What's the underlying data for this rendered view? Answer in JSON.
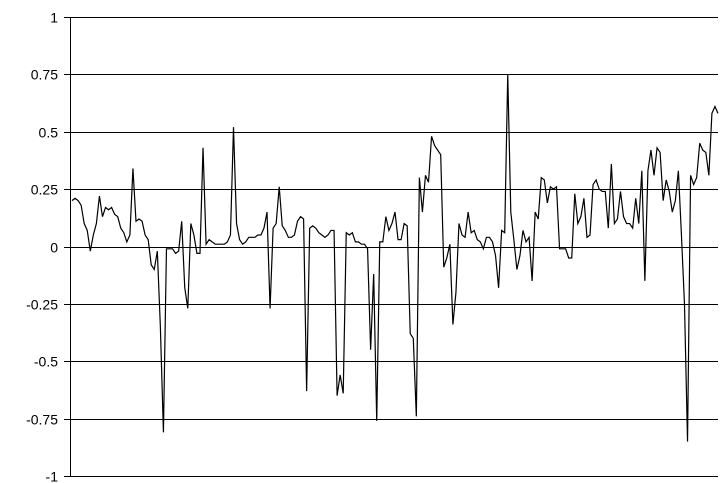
{
  "chart_data": {
    "type": "line",
    "title": "",
    "xlabel": "",
    "ylabel": "",
    "ylim": [
      -1,
      1
    ],
    "yticks": [
      1,
      0.75,
      0.5,
      0.25,
      0,
      -0.25,
      -0.5,
      -0.75,
      -1
    ],
    "ytick_labels": [
      "1",
      "0.75",
      "0.5",
      "0.25",
      "0",
      "-0.25",
      "-0.5",
      "-0.75",
      "-1"
    ],
    "grid": "horizontal",
    "legend": "none",
    "line_color": "#000000",
    "grid_color": "#000000",
    "series": [
      {
        "values": [
          0.2,
          0.21,
          0.2,
          0.18,
          0.1,
          0.07,
          -0.02,
          0.05,
          0.1,
          0.22,
          0.13,
          0.17,
          0.16,
          0.17,
          0.14,
          0.13,
          0.08,
          0.06,
          0.02,
          0.05,
          0.34,
          0.11,
          0.12,
          0.11,
          0.05,
          0.03,
          -0.08,
          -0.1,
          -0.02,
          -0.35,
          -0.81,
          -0.01,
          -0.01,
          -0.01,
          -0.03,
          -0.02,
          0.11,
          -0.18,
          -0.27,
          0.1,
          0.05,
          -0.03,
          -0.03,
          0.43,
          0.01,
          0.03,
          0.02,
          0.01,
          0.01,
          0.01,
          0.01,
          0.02,
          0.05,
          0.52,
          0.1,
          0.03,
          0.01,
          0.02,
          0.04,
          0.04,
          0.04,
          0.05,
          0.05,
          0.08,
          0.15,
          -0.27,
          0.08,
          0.1,
          0.26,
          0.09,
          0.07,
          0.04,
          0.04,
          0.05,
          0.11,
          0.13,
          0.12,
          -0.63,
          0.08,
          0.09,
          0.08,
          0.06,
          0.05,
          0.04,
          0.05,
          0.07,
          0.07,
          -0.65,
          -0.56,
          -0.64,
          0.06,
          0.05,
          0.06,
          0.02,
          0.02,
          0.01,
          0.01,
          -0.01,
          -0.45,
          -0.12,
          -0.76,
          0.02,
          0.02,
          0.13,
          0.07,
          0.1,
          0.15,
          0.03,
          0.03,
          0.1,
          0.09,
          -0.38,
          -0.4,
          -0.74,
          0.3,
          0.15,
          0.31,
          0.28,
          0.48,
          0.44,
          0.42,
          0.4,
          -0.09,
          -0.05,
          0.01,
          -0.34,
          -0.2,
          0.1,
          0.05,
          0.04,
          0.15,
          0.06,
          0.07,
          0.03,
          0.02,
          -0.01,
          0.04,
          0.04,
          0.02,
          -0.04,
          -0.18,
          0.07,
          0.06,
          0.75,
          0.15,
          0.03,
          -0.1,
          -0.04,
          0.07,
          0.02,
          0.04,
          -0.15,
          0.15,
          0.12,
          0.3,
          0.29,
          0.19,
          0.26,
          0.25,
          0.26,
          -0.01,
          -0.01,
          -0.01,
          -0.05,
          -0.05,
          0.23,
          0.1,
          0.13,
          0.21,
          0.04,
          0.05,
          0.27,
          0.29,
          0.25,
          0.24,
          0.24,
          0.08,
          0.36,
          0.1,
          0.12,
          0.24,
          0.13,
          0.1,
          0.1,
          0.08,
          0.21,
          0.1,
          0.33,
          -0.15,
          0.33,
          0.42,
          0.31,
          0.43,
          0.41,
          0.2,
          0.29,
          0.24,
          0.15,
          0.2,
          0.33,
          0.05,
          -0.25,
          -0.85,
          0.31,
          0.27,
          0.3,
          0.45,
          0.42,
          0.41,
          0.31,
          0.58,
          0.61,
          0.58
        ]
      }
    ]
  }
}
